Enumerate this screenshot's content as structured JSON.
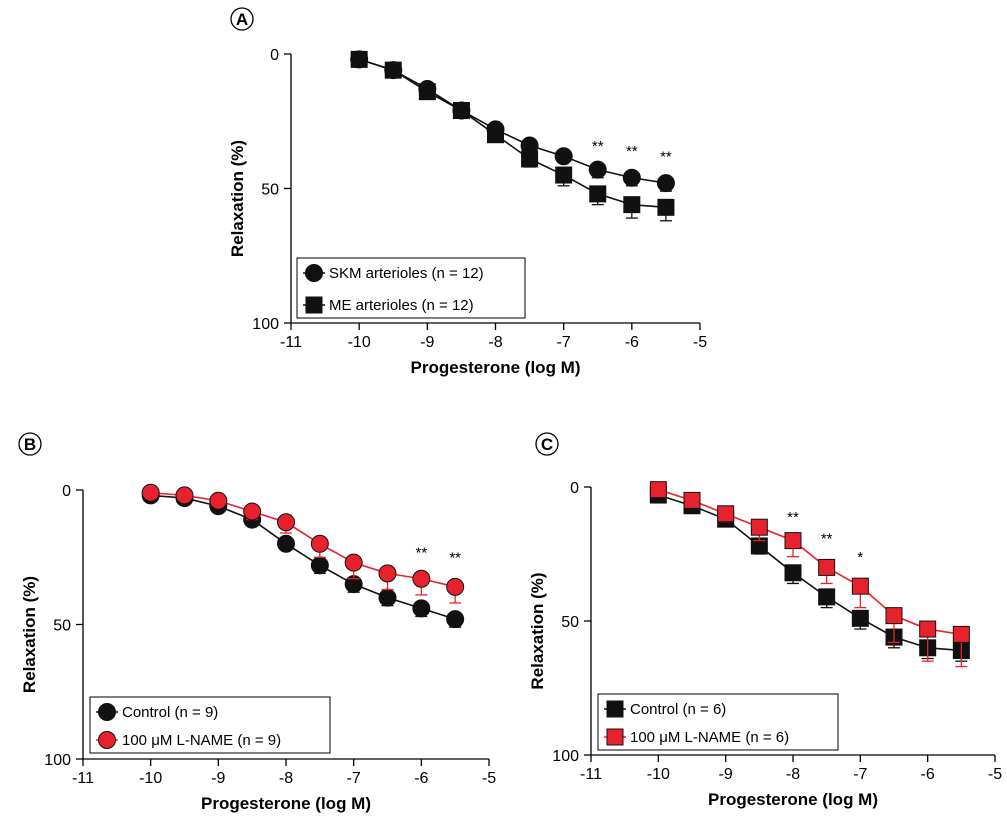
{
  "chart_data": [
    {
      "id": "A",
      "panel_label": "A",
      "type": "line",
      "xlabel": "Progesterone (log M)",
      "ylabel": "Relaxation (%)",
      "xlim": [
        -11,
        -5
      ],
      "ylim": [
        0,
        100
      ],
      "y_inverted": true,
      "xticks": [
        -11,
        -10,
        -9,
        -8,
        -7,
        -6,
        -5
      ],
      "yticks": [
        0,
        50,
        100
      ],
      "legend_position": "bottom-left",
      "x": [
        -10,
        -9.5,
        -9,
        -8.5,
        -8,
        -7.5,
        -7,
        -6.5,
        -6,
        -5.5
      ],
      "series": [
        {
          "name": "SKM arterioles (n = 12)",
          "marker": "circle",
          "color": "#111111",
          "values": [
            2,
            6,
            13,
            21,
            28,
            34,
            38,
            43,
            46,
            48
          ],
          "errors": [
            1,
            1,
            1.5,
            2,
            2,
            2,
            2,
            3,
            3,
            3
          ]
        },
        {
          "name": "ME arterioles (n = 12)",
          "marker": "square",
          "color": "#111111",
          "values": [
            2,
            6,
            14,
            21,
            30,
            39,
            45,
            52,
            56,
            57
          ],
          "errors": [
            1,
            1,
            2,
            2,
            2,
            3,
            4,
            4,
            5,
            5
          ]
        }
      ],
      "annotations": [
        {
          "x": -6.5,
          "y": 36,
          "text": "**"
        },
        {
          "x": -6,
          "y": 38,
          "text": "**"
        },
        {
          "x": -5.5,
          "y": 40,
          "text": "**"
        }
      ]
    },
    {
      "id": "B",
      "panel_label": "B",
      "type": "line",
      "xlabel": "Progesterone (log M)",
      "ylabel": "Relaxation (%)",
      "xlim": [
        -11,
        -5
      ],
      "ylim": [
        0,
        100
      ],
      "y_inverted": true,
      "xticks": [
        -11,
        -10,
        -9,
        -8,
        -7,
        -6,
        -5
      ],
      "yticks": [
        0,
        50,
        100
      ],
      "legend_position": "bottom-left",
      "x": [
        -10,
        -9.5,
        -9,
        -8.5,
        -8,
        -7.5,
        -7,
        -6.5,
        -6,
        -5.5
      ],
      "series": [
        {
          "name": "Control (n = 9)",
          "marker": "circle",
          "color": "#111111",
          "values": [
            2,
            3,
            6,
            11,
            20,
            28,
            35,
            40,
            44,
            48
          ],
          "errors": [
            1,
            1,
            1,
            2,
            2,
            3,
            3,
            3,
            3,
            3
          ]
        },
        {
          "name": "100 μM L-NAME (n = 9)",
          "marker": "circle",
          "color": "#e8222d",
          "values": [
            1,
            2,
            4,
            8,
            12,
            20,
            27,
            31,
            33,
            36
          ],
          "errors": [
            1,
            1,
            2,
            3,
            4,
            5,
            6,
            6,
            6,
            6
          ]
        }
      ],
      "annotations": [
        {
          "x": -6,
          "y": 25,
          "text": "**"
        },
        {
          "x": -5.5,
          "y": 27,
          "text": "**"
        }
      ]
    },
    {
      "id": "C",
      "panel_label": "C",
      "type": "line",
      "xlabel": "Progesterone (log M)",
      "ylabel": "Relaxation (%)",
      "xlim": [
        -11,
        -5
      ],
      "ylim": [
        0,
        100
      ],
      "y_inverted": true,
      "xticks": [
        -11,
        -10,
        -9,
        -8,
        -7,
        -6,
        -5
      ],
      "yticks": [
        0,
        50,
        100
      ],
      "legend_position": "bottom-left",
      "x": [
        -10,
        -9.5,
        -9,
        -8.5,
        -8,
        -7.5,
        -7,
        -6.5,
        -6,
        -5.5
      ],
      "series": [
        {
          "name": "Control (n = 6)",
          "marker": "square",
          "color": "#111111",
          "values": [
            3,
            7,
            12,
            22,
            32,
            41,
            49,
            56,
            60,
            61
          ],
          "errors": [
            1,
            1,
            2,
            3,
            4,
            4,
            4,
            4,
            4,
            4
          ]
        },
        {
          "name": "100 μM L-NAME (n = 6)",
          "marker": "square",
          "color": "#e8222d",
          "values": [
            1,
            5,
            10,
            15,
            20,
            30,
            37,
            48,
            53,
            55
          ],
          "errors": [
            1,
            1,
            3,
            5,
            6,
            6,
            8,
            10,
            12,
            12
          ]
        }
      ],
      "annotations": [
        {
          "x": -8,
          "y": 13,
          "text": "**"
        },
        {
          "x": -7.5,
          "y": 21,
          "text": "**"
        },
        {
          "x": -7,
          "y": 28,
          "text": "*"
        }
      ]
    }
  ]
}
